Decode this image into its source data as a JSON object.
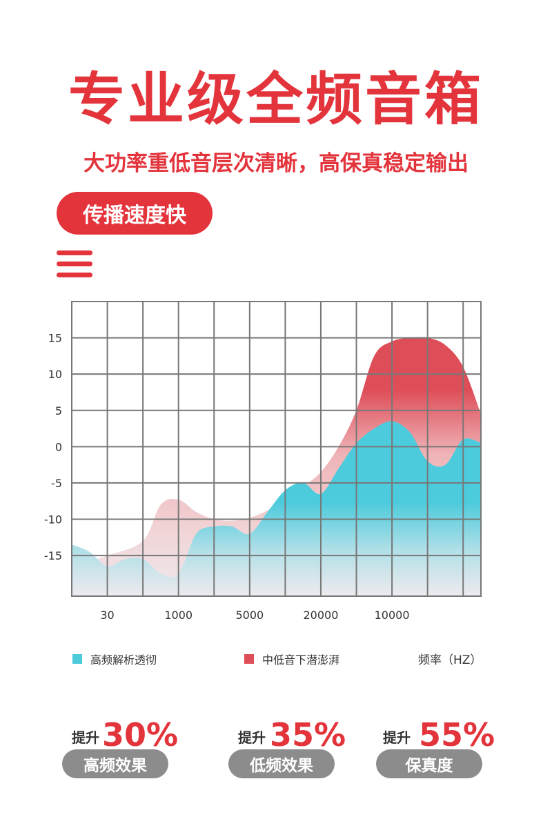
{
  "header": {
    "title": "专业级全频音箱",
    "subtitle": "大功率重低音层次清晰，高保真稳定输出",
    "tag": "传播速度快"
  },
  "colors": {
    "accent": "#e3343c",
    "series_high": "#4ccbdc",
    "series_low": "#de4e58",
    "grid": "#777777",
    "pill_gray": "#8c8c8c"
  },
  "chart_data": {
    "type": "area",
    "title": "",
    "xlabel": "频率（HZ）",
    "ylabel": "",
    "x_ticks": [
      "30",
      "1000",
      "5000",
      "20000",
      "10000"
    ],
    "y_ticks": [
      "15",
      "10",
      "5",
      "0",
      "-5",
      "-10",
      "-15"
    ],
    "ylim": [
      -20.6,
      20
    ],
    "grid": true,
    "legend_position": "bottom",
    "series": [
      {
        "name": "中低音下潜澎湃",
        "color": "#de4e58",
        "x": [
          0,
          0.5,
          1,
          2,
          2.5,
          3,
          3.5,
          4,
          4.5,
          5,
          5.5,
          6,
          6.5,
          7,
          7.5,
          8,
          8.5,
          9,
          9.5,
          10,
          10.5,
          11,
          11.5
        ],
        "values": [
          -16.5,
          -15.8,
          -15,
          -13,
          -8,
          -7.3,
          -9,
          -10,
          -10.2,
          -9.8,
          -8.8,
          -7.3,
          -5.5,
          -3.5,
          0,
          5,
          12.5,
          14.5,
          15,
          15,
          14,
          11,
          4.5
        ]
      },
      {
        "name": "高频解析透彻",
        "color": "#4ccbdc",
        "x": [
          0,
          0.5,
          1,
          1.5,
          2,
          2.5,
          3,
          3.5,
          4,
          4.5,
          5,
          5.5,
          6,
          6.5,
          7,
          7.5,
          8,
          8.5,
          9,
          9.5,
          10,
          10.5,
          11,
          11.5
        ],
        "values": [
          -13.5,
          -14.5,
          -16.5,
          -15.5,
          -15.5,
          -17.5,
          -17.5,
          -12,
          -11,
          -11,
          -12,
          -9,
          -6,
          -5,
          -6.5,
          -3,
          0.5,
          2.5,
          3.5,
          2,
          -2,
          -2.5,
          1,
          0.5
        ]
      }
    ]
  },
  "stats": [
    {
      "prefix": "提升",
      "value": "30%",
      "label": "高频效果"
    },
    {
      "prefix": "提升",
      "value": "35%",
      "label": "低频效果"
    },
    {
      "prefix": "提升",
      "value": "55%",
      "label": "保真度"
    }
  ]
}
